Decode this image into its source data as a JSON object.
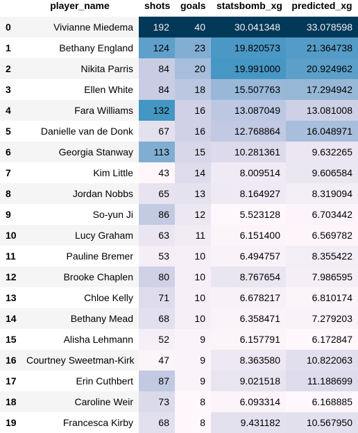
{
  "table": {
    "columns": [
      "player_name",
      "shots",
      "goals",
      "statsbomb_xg",
      "predicted_xg"
    ],
    "rows": [
      {
        "index": "0",
        "player_name": "Vivianne Miedema",
        "shots": "192",
        "goals": "40",
        "statsbomb_xg": "30.041348",
        "predicted_xg": "33.078598"
      },
      {
        "index": "1",
        "player_name": "Bethany England",
        "shots": "124",
        "goals": "23",
        "statsbomb_xg": "19.820573",
        "predicted_xg": "21.364738"
      },
      {
        "index": "2",
        "player_name": "Nikita Parris",
        "shots": "84",
        "goals": "20",
        "statsbomb_xg": "19.991000",
        "predicted_xg": "20.924962"
      },
      {
        "index": "3",
        "player_name": "Ellen White",
        "shots": "84",
        "goals": "18",
        "statsbomb_xg": "15.507763",
        "predicted_xg": "17.294942"
      },
      {
        "index": "4",
        "player_name": "Fara Williams",
        "shots": "132",
        "goals": "16",
        "statsbomb_xg": "13.087049",
        "predicted_xg": "13.081008"
      },
      {
        "index": "5",
        "player_name": "Danielle van de Donk",
        "shots": "67",
        "goals": "16",
        "statsbomb_xg": "12.768864",
        "predicted_xg": "16.048971"
      },
      {
        "index": "6",
        "player_name": "Georgia Stanway",
        "shots": "113",
        "goals": "15",
        "statsbomb_xg": "10.281361",
        "predicted_xg": "9.632265"
      },
      {
        "index": "7",
        "player_name": "Kim Little",
        "shots": "43",
        "goals": "14",
        "statsbomb_xg": "8.009514",
        "predicted_xg": "9.606584"
      },
      {
        "index": "8",
        "player_name": "Jordan Nobbs",
        "shots": "65",
        "goals": "13",
        "statsbomb_xg": "8.164927",
        "predicted_xg": "8.319094"
      },
      {
        "index": "9",
        "player_name": "So-yun Ji",
        "shots": "86",
        "goals": "12",
        "statsbomb_xg": "5.523128",
        "predicted_xg": "6.703442"
      },
      {
        "index": "10",
        "player_name": "Lucy Graham",
        "shots": "63",
        "goals": "11",
        "statsbomb_xg": "6.151400",
        "predicted_xg": "6.569782"
      },
      {
        "index": "11",
        "player_name": "Pauline Bremer",
        "shots": "53",
        "goals": "10",
        "statsbomb_xg": "6.494757",
        "predicted_xg": "8.355422"
      },
      {
        "index": "12",
        "player_name": "Brooke Chaplen",
        "shots": "80",
        "goals": "10",
        "statsbomb_xg": "8.767654",
        "predicted_xg": "7.986595"
      },
      {
        "index": "13",
        "player_name": "Chloe Kelly",
        "shots": "71",
        "goals": "10",
        "statsbomb_xg": "6.678217",
        "predicted_xg": "6.810174"
      },
      {
        "index": "14",
        "player_name": "Bethany Mead",
        "shots": "68",
        "goals": "10",
        "statsbomb_xg": "6.358471",
        "predicted_xg": "7.279203"
      },
      {
        "index": "15",
        "player_name": "Alisha Lehmann",
        "shots": "52",
        "goals": "9",
        "statsbomb_xg": "6.157791",
        "predicted_xg": "6.172847"
      },
      {
        "index": "16",
        "player_name": "Courtney Sweetman-Kirk",
        "shots": "47",
        "goals": "9",
        "statsbomb_xg": "8.363580",
        "predicted_xg": "10.822063"
      },
      {
        "index": "17",
        "player_name": "Erin Cuthbert",
        "shots": "87",
        "goals": "9",
        "statsbomb_xg": "9.021518",
        "predicted_xg": "11.188699"
      },
      {
        "index": "18",
        "player_name": "Caroline Weir",
        "shots": "73",
        "goals": "8",
        "statsbomb_xg": "6.093314",
        "predicted_xg": "6.168885"
      },
      {
        "index": "19",
        "player_name": "Francesca Kirby",
        "shots": "68",
        "goals": "8",
        "statsbomb_xg": "9.431182",
        "predicted_xg": "10.567950"
      }
    ]
  },
  "colors": {
    "gradient_low": "#fff7fb",
    "gradient_high": "#023858"
  }
}
